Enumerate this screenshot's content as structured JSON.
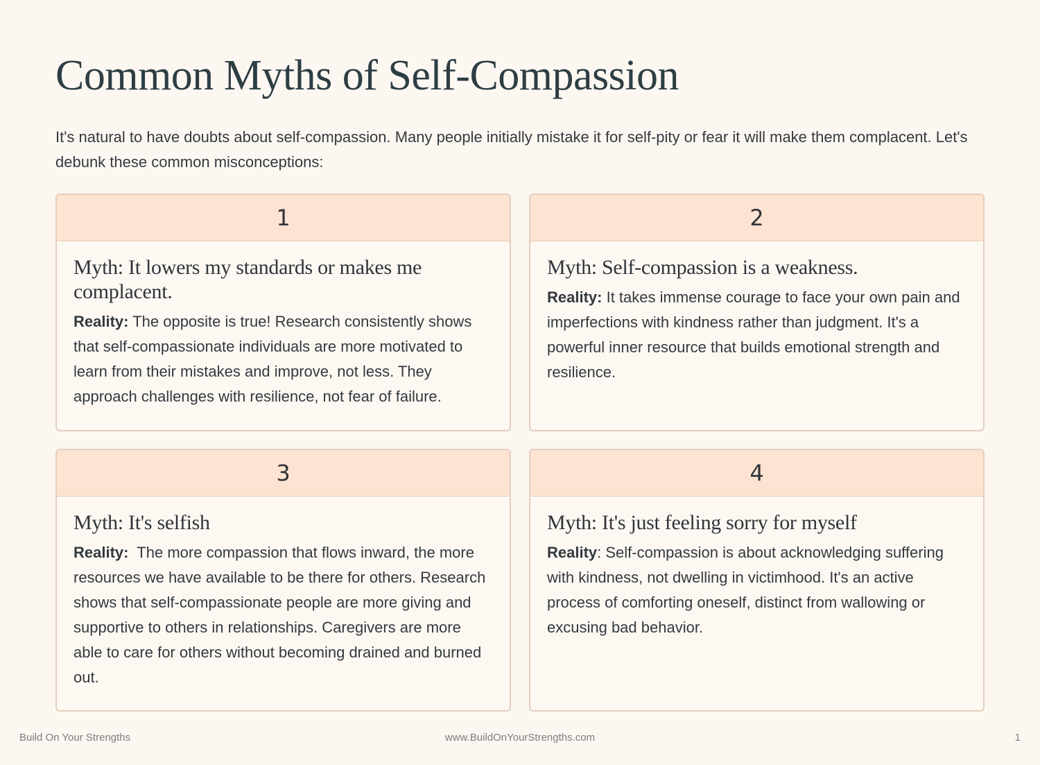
{
  "header": {
    "title": "Common Myths of Self-Compassion",
    "intro": "It's natural to have doubts about self-compassion. Many people initially mistake it for self-pity or fear it will make them complacent. Let's debunk these common misconceptions:"
  },
  "cards": [
    {
      "number": "1",
      "myth": "Myth: It lowers my standards or makes me complacent.",
      "reality_label": "Reality:",
      "reality": " The opposite is true! Research consistently shows that self-compassionate individuals are more motivated to learn from their mistakes and improve, not less. They approach challenges with resilience, not fear of failure."
    },
    {
      "number": "2",
      "myth": "Myth: Self-compassion is a weakness.",
      "reality_label": "Reality:",
      "reality": " It takes immense courage to face your own pain and imperfections with kindness rather than judgment. It's a powerful inner resource that builds emotional strength and resilience."
    },
    {
      "number": "3",
      "myth": "Myth: It's selfish",
      "reality_label": "Reality:",
      "reality": "  The more compassion that flows inward, the more resources we have available to be there for others. Research shows that self-compassionate people are more giving and supportive to others in relationships. Caregivers are more able to care for others without becoming drained and burned out."
    },
    {
      "number": "4",
      "myth": "Myth: It's just feeling sorry for myself",
      "reality_label": "Reality",
      "reality": ": Self-compassion is about acknowledging suffering with kindness, not dwelling in victimhood. It's an active process of comforting oneself, distinct from wallowing or excusing bad behavior."
    }
  ],
  "footer": {
    "left": "Build On Your Strengths",
    "center": "www.BuildOnYourStrengths.com",
    "page": "1"
  }
}
